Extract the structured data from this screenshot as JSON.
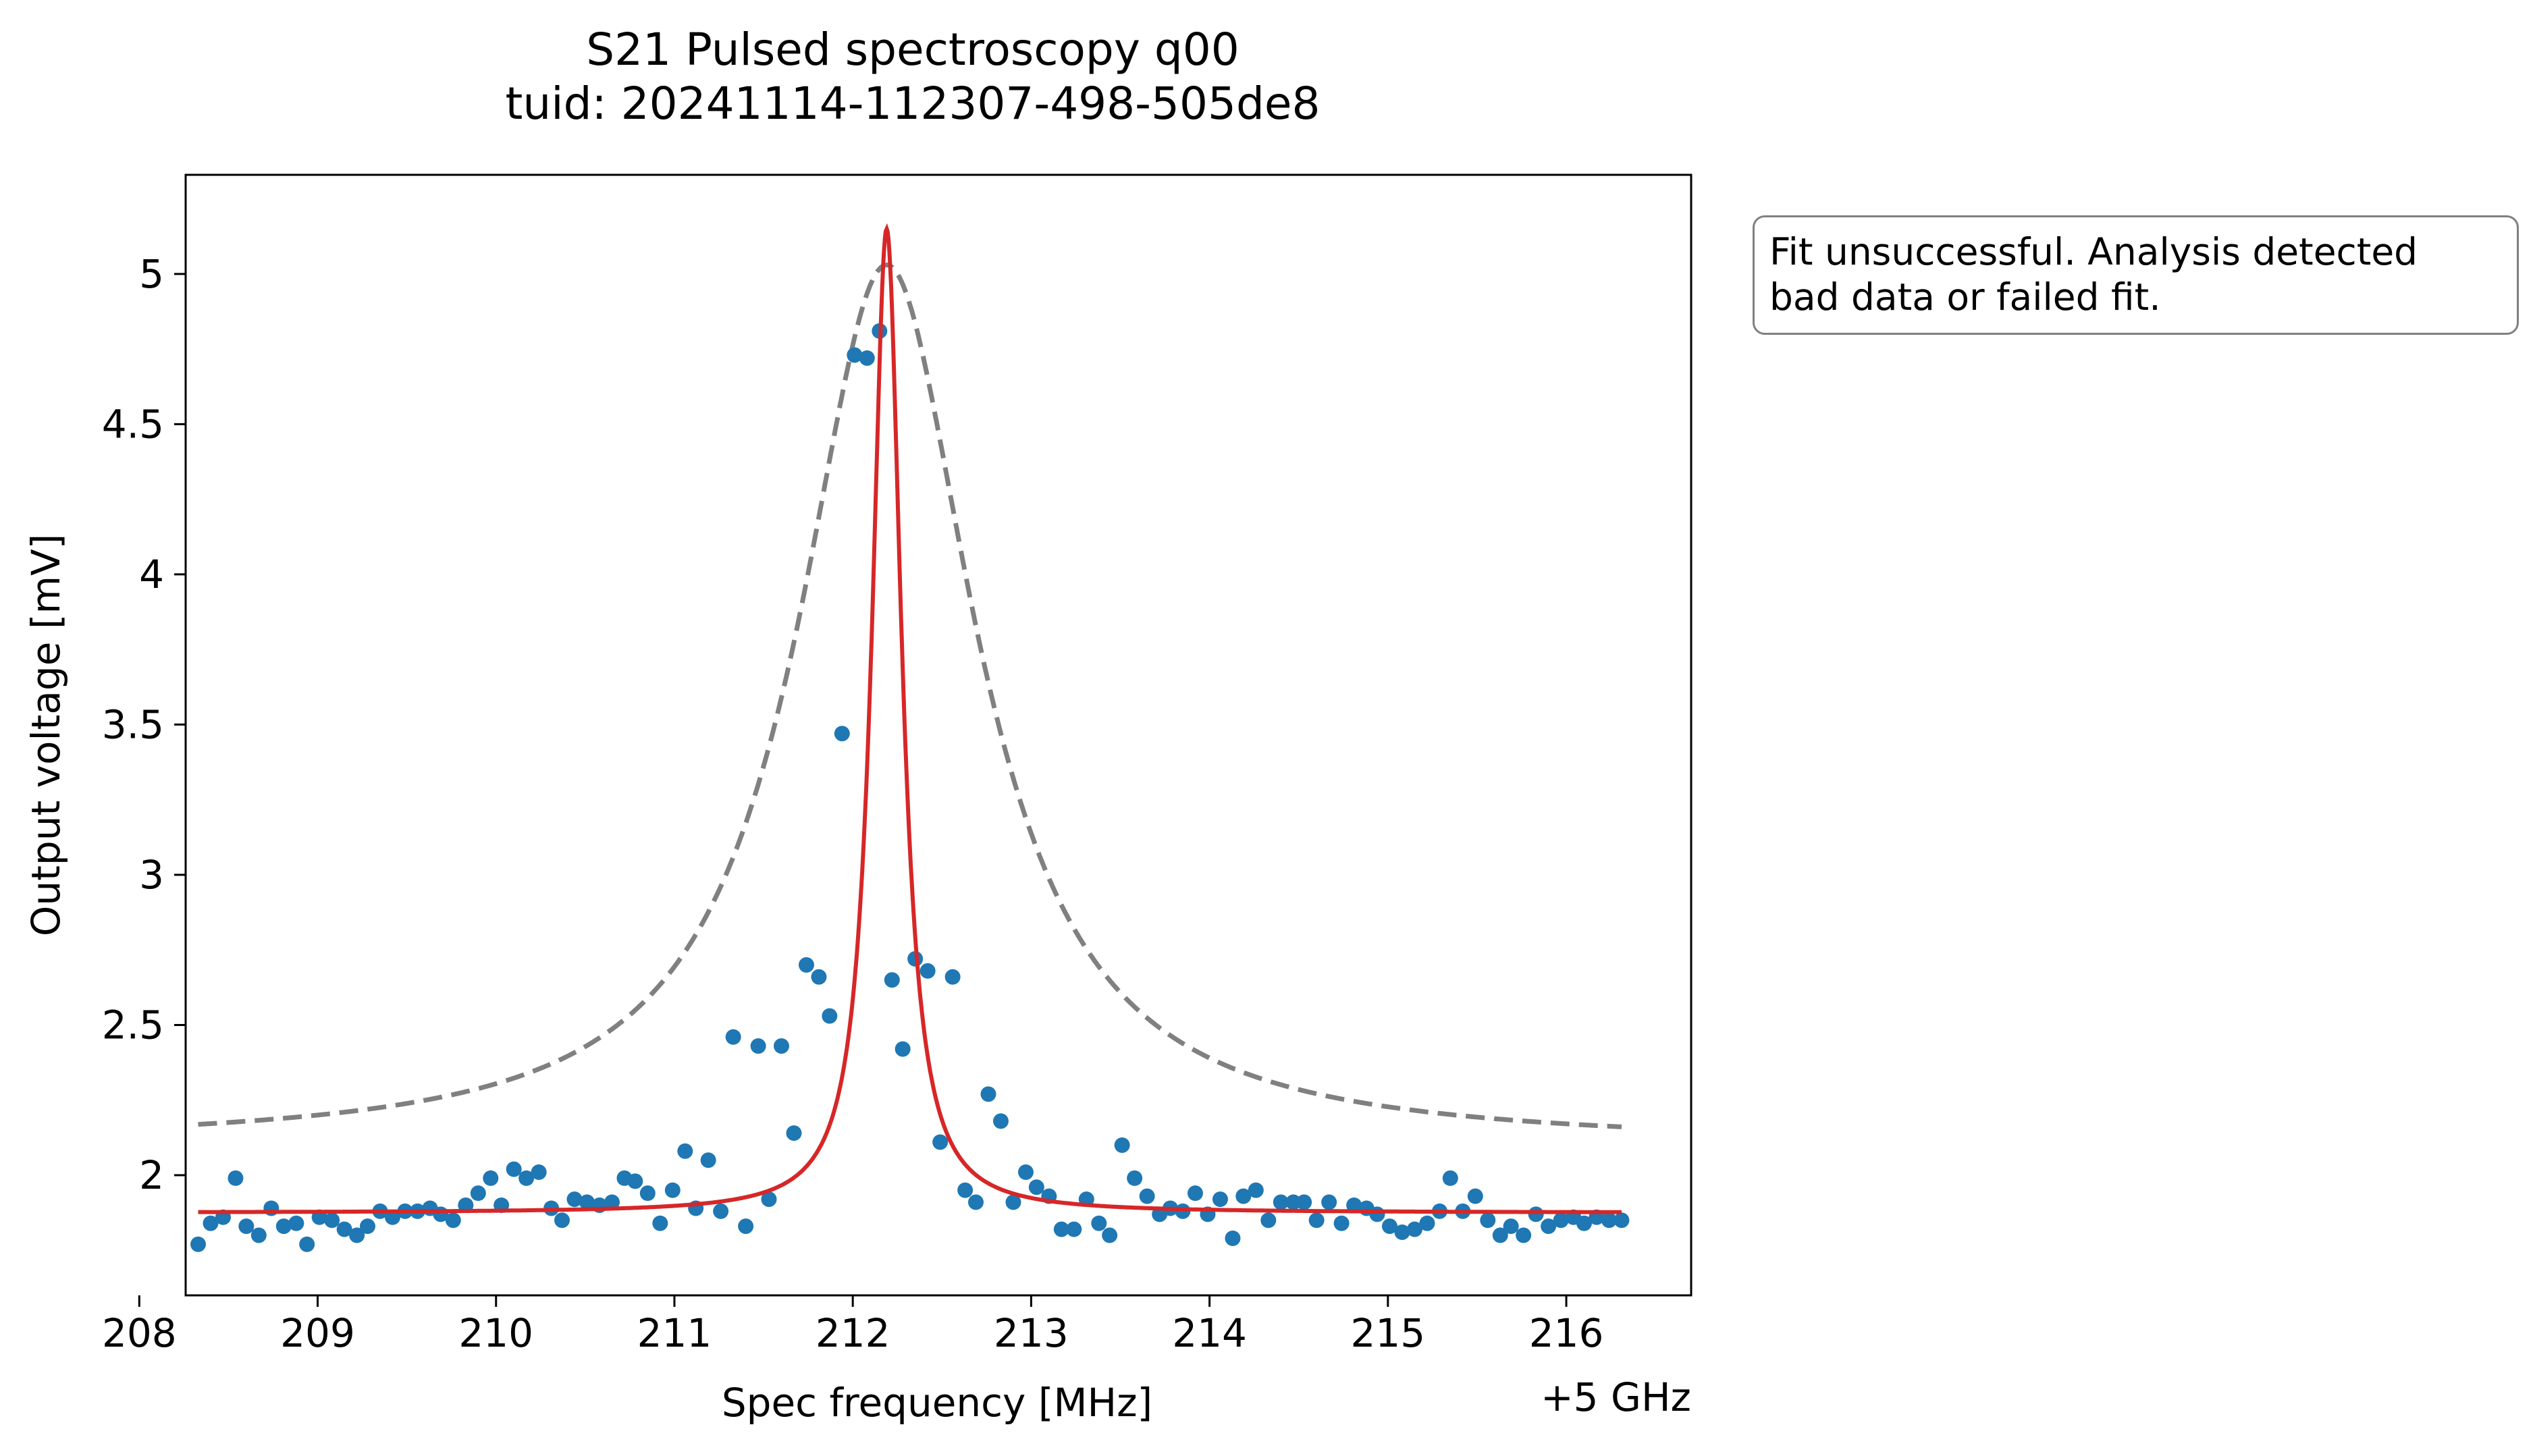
{
  "chart_data": {
    "type": "scatter",
    "title": "S21 Pulsed spectroscopy q00",
    "subtitle": "tuid: 20241114-112307-498-505de8",
    "xlabel": "Spec frequency [MHz]",
    "ylabel": "Output voltage [mV]",
    "x_offset_label": "+5 GHz",
    "xlim": [
      208.26,
      216.7
    ],
    "ylim": [
      1.6,
      5.33
    ],
    "x_ticks": [
      208,
      209,
      210,
      211,
      212,
      213,
      214,
      215,
      216
    ],
    "x_tick_labels": [
      "208",
      "209",
      "210",
      "211",
      "212",
      "213",
      "214",
      "215",
      "216"
    ],
    "y_ticks": [
      2,
      2.5,
      3,
      3.5,
      4,
      4.5,
      5
    ],
    "y_tick_labels": [
      "2",
      "2.5",
      "3",
      "3.5",
      "4",
      "4.5",
      "5"
    ],
    "grid": false,
    "annotation": "Fit unsuccessful. Analysis detected\nbad data or failed fit.",
    "series": [
      {
        "kind": "scatter",
        "color": "#1f77b4",
        "x": [
          208.33,
          208.4,
          208.47,
          208.54,
          208.6,
          208.67,
          208.74,
          208.81,
          208.88,
          208.94,
          209.01,
          209.08,
          209.15,
          209.22,
          209.28,
          209.35,
          209.42,
          209.49,
          209.56,
          209.63,
          209.69,
          209.76,
          209.83,
          209.9,
          209.97,
          210.03,
          210.1,
          210.17,
          210.24,
          210.31,
          210.37,
          210.44,
          210.51,
          210.58,
          210.65,
          210.72,
          210.78,
          210.85,
          210.92,
          210.99,
          211.06,
          211.12,
          211.19,
          211.26,
          211.33,
          211.4,
          211.47,
          211.53,
          211.6,
          211.67,
          211.74,
          211.81,
          211.87,
          211.94,
          212.01,
          212.08,
          212.15,
          212.22,
          212.28,
          212.35,
          212.42,
          212.49,
          212.56,
          212.63,
          212.69,
          212.76,
          212.83,
          212.9,
          212.97,
          213.03,
          213.1,
          213.17,
          213.24,
          213.31,
          213.38,
          213.44,
          213.51,
          213.58,
          213.65,
          213.72,
          213.78,
          213.85,
          213.92,
          213.99,
          214.06,
          214.13,
          214.19,
          214.26,
          214.33,
          214.4,
          214.47,
          214.53,
          214.6,
          214.67,
          214.74,
          214.81,
          214.88,
          214.94,
          215.01,
          215.08,
          215.15,
          215.22,
          215.29,
          215.35,
          215.42,
          215.49,
          215.56,
          215.63,
          215.69,
          215.76,
          215.83,
          215.9,
          215.97,
          216.04,
          216.1,
          216.17,
          216.24,
          216.31
        ],
        "y": [
          1.77,
          1.84,
          1.86,
          1.99,
          1.83,
          1.8,
          1.89,
          1.83,
          1.84,
          1.77,
          1.86,
          1.85,
          1.82,
          1.8,
          1.83,
          1.88,
          1.86,
          1.88,
          1.88,
          1.89,
          1.87,
          1.85,
          1.9,
          1.94,
          1.99,
          1.9,
          2.02,
          1.99,
          2.01,
          1.89,
          1.85,
          1.92,
          1.91,
          1.9,
          1.91,
          1.99,
          1.98,
          1.94,
          1.84,
          1.95,
          2.08,
          1.89,
          2.05,
          1.88,
          2.46,
          1.83,
          2.43,
          1.92,
          2.43,
          2.14,
          2.7,
          2.66,
          2.53,
          3.47,
          4.73,
          4.72,
          4.81,
          2.65,
          2.42,
          2.72,
          2.68,
          2.11,
          2.66,
          1.95,
          1.91,
          2.27,
          2.18,
          1.91,
          2.01,
          1.96,
          1.93,
          1.82,
          1.82,
          1.92,
          1.84,
          1.8,
          2.1,
          1.99,
          1.93,
          1.87,
          1.89,
          1.88,
          1.94,
          1.87,
          1.92,
          1.79,
          1.93,
          1.95,
          1.85,
          1.91,
          1.91,
          1.91,
          1.85,
          1.91,
          1.84,
          1.9,
          1.89,
          1.87,
          1.83,
          1.81,
          1.82,
          1.84,
          1.88,
          1.99,
          1.88,
          1.93,
          1.85,
          1.8,
          1.83,
          1.8,
          1.87,
          1.83,
          1.85,
          1.86,
          1.84,
          1.86,
          1.85,
          1.85
        ]
      },
      {
        "kind": "line",
        "style": "solid",
        "color": "#d62728",
        "model": "lorentzian",
        "x_range": [
          208.33,
          216.31
        ],
        "center": 212.19,
        "hwhm": 0.1,
        "baseline": 1.875,
        "peak": 5.15
      },
      {
        "kind": "line",
        "style": "dashed",
        "color": "#808080",
        "model": "lorentzian",
        "x_range": [
          208.33,
          216.31
        ],
        "center": 212.19,
        "hwhm": 0.6,
        "baseline": 2.1,
        "peak": 5.03
      }
    ]
  }
}
